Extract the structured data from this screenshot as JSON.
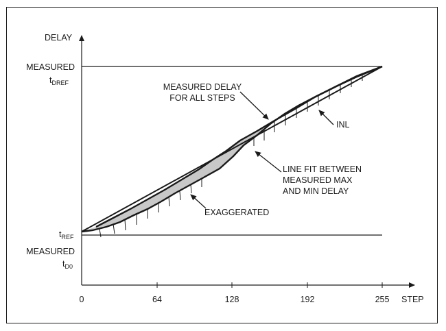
{
  "axes": {
    "y_label": "DELAY",
    "x_label": "STEP",
    "x_ticks": [
      "0",
      "64",
      "128",
      "192",
      "255"
    ]
  },
  "y_labels": {
    "top_line1": "MEASURED",
    "top_t": "t",
    "top_sub": "DREF",
    "ref_t": "t",
    "ref_sub": "REF",
    "bottom_line1": "MEASURED",
    "bottom_t": "t",
    "bottom_sub": "D0"
  },
  "annotations": {
    "measured_delay_line1": "MEASURED DELAY",
    "measured_delay_line2": "FOR ALL STEPS",
    "inl": "INL",
    "line_fit_line1": "LINE FIT BETWEEN",
    "line_fit_line2": "MEASURED MAX",
    "line_fit_line3": "AND MIN DELAY",
    "exaggerated": "EXAGGERATED"
  },
  "colors": {
    "ink": "#1a1a1a",
    "shade": "#c8c8c8"
  }
}
